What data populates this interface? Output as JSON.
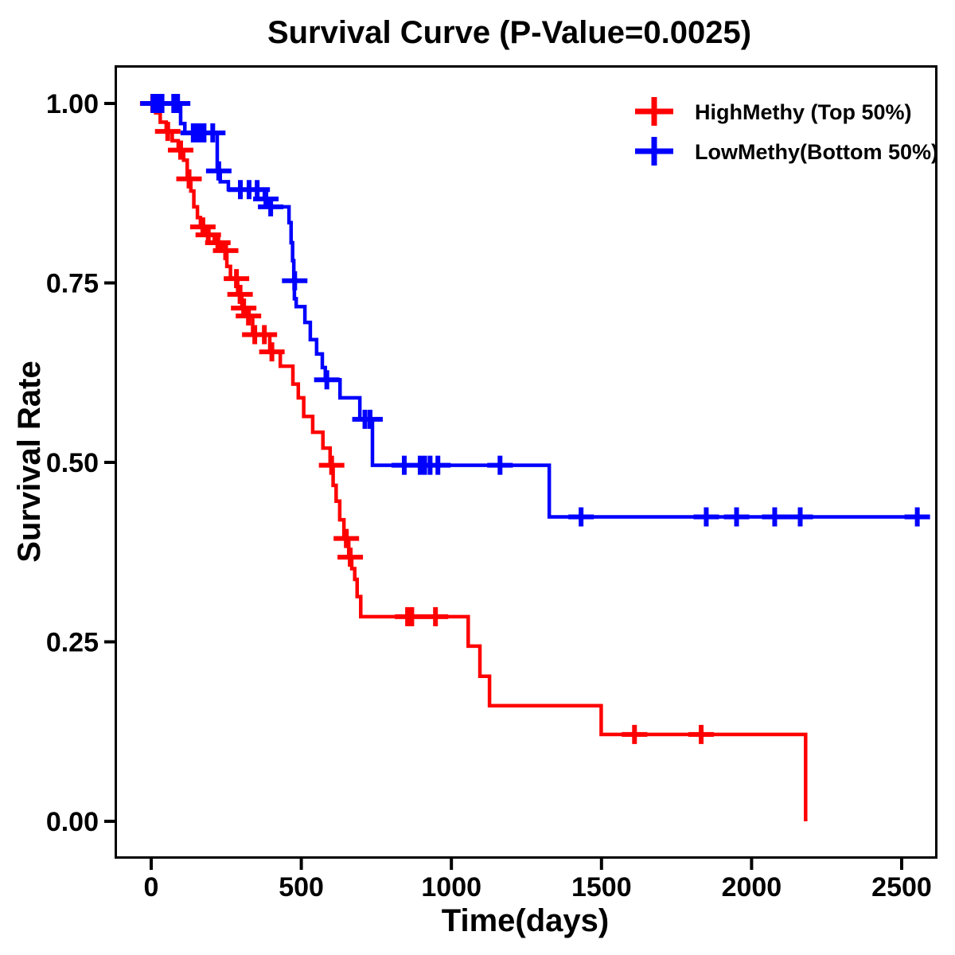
{
  "page": {
    "background": "#FFFFFF",
    "text_color": "#000000"
  },
  "chart_data": {
    "type": "line",
    "variant": "kaplan_meier_step_survival",
    "title": "Survival Curve (P-Value=0.0025)",
    "p_value": "0.0025",
    "xlabel": "Time(days)",
    "ylabel": "Survival Rate",
    "xlim": [
      0,
      2600
    ],
    "ylim": [
      0.0,
      1.0
    ],
    "grid": false,
    "legend_position": "top-right",
    "axis_color": "#000000",
    "xtick_values": [
      0,
      500,
      1000,
      1500,
      2000,
      2500
    ],
    "xtick_labels": [
      "0",
      "500",
      "1000",
      "1500",
      "2000",
      "2500"
    ],
    "ytick_values": [
      0,
      0.25,
      0.5,
      0.75,
      1.0
    ],
    "ytick_labels": [
      "0.00",
      "0.25",
      "0.50",
      "0.75",
      "1.00"
    ],
    "series": [
      {
        "name": "HighMethy (Top 50%)",
        "color": "#FF0000",
        "end_time": 2180,
        "steps": [
          [
            0,
            1.0
          ],
          [
            15,
            0.987
          ],
          [
            30,
            0.974
          ],
          [
            50,
            0.961
          ],
          [
            70,
            0.948
          ],
          [
            90,
            0.935
          ],
          [
            108,
            0.921
          ],
          [
            120,
            0.895
          ],
          [
            132,
            0.878
          ],
          [
            142,
            0.856
          ],
          [
            154,
            0.841
          ],
          [
            164,
            0.828
          ],
          [
            180,
            0.817
          ],
          [
            210,
            0.806
          ],
          [
            235,
            0.795
          ],
          [
            252,
            0.773
          ],
          [
            264,
            0.756
          ],
          [
            288,
            0.734
          ],
          [
            302,
            0.715
          ],
          [
            316,
            0.704
          ],
          [
            338,
            0.678
          ],
          [
            395,
            0.654
          ],
          [
            430,
            0.634
          ],
          [
            472,
            0.609
          ],
          [
            490,
            0.59
          ],
          [
            508,
            0.564
          ],
          [
            538,
            0.542
          ],
          [
            572,
            0.52
          ],
          [
            596,
            0.496
          ],
          [
            606,
            0.468
          ],
          [
            616,
            0.446
          ],
          [
            628,
            0.42
          ],
          [
            642,
            0.394
          ],
          [
            658,
            0.368
          ],
          [
            668,
            0.352
          ],
          [
            678,
            0.337
          ],
          [
            686,
            0.313
          ],
          [
            698,
            0.285
          ],
          [
            1056,
            0.244
          ],
          [
            1095,
            0.202
          ],
          [
            1127,
            0.161
          ],
          [
            1499,
            0.121
          ],
          [
            2180,
            0.0
          ]
        ],
        "censors": [
          [
            5,
            1.0
          ],
          [
            55,
            0.961
          ],
          [
            98,
            0.935
          ],
          [
            126,
            0.895
          ],
          [
            172,
            0.828
          ],
          [
            190,
            0.817
          ],
          [
            222,
            0.806
          ],
          [
            248,
            0.795
          ],
          [
            284,
            0.756
          ],
          [
            296,
            0.734
          ],
          [
            308,
            0.715
          ],
          [
            324,
            0.704
          ],
          [
            345,
            0.678
          ],
          [
            377,
            0.678
          ],
          [
            402,
            0.654
          ],
          [
            601,
            0.496
          ],
          [
            650,
            0.394
          ],
          [
            663,
            0.368
          ],
          [
            854,
            0.285
          ],
          [
            868,
            0.285
          ],
          [
            947,
            0.285
          ],
          [
            1610,
            0.121
          ],
          [
            1832,
            0.121
          ]
        ]
      },
      {
        "name": "LowMethy(Bottom 50%)",
        "color": "#0000FF",
        "end_time": 2581,
        "steps": [
          [
            0,
            1.0
          ],
          [
            98,
            0.972
          ],
          [
            112,
            0.959
          ],
          [
            220,
            0.906
          ],
          [
            230,
            0.891
          ],
          [
            257,
            0.88
          ],
          [
            377,
            0.867
          ],
          [
            390,
            0.856
          ],
          [
            459,
            0.834
          ],
          [
            466,
            0.806
          ],
          [
            471,
            0.781
          ],
          [
            475,
            0.753
          ],
          [
            477,
            0.728
          ],
          [
            483,
            0.717
          ],
          [
            512,
            0.695
          ],
          [
            530,
            0.671
          ],
          [
            551,
            0.651
          ],
          [
            570,
            0.632
          ],
          [
            580,
            0.615
          ],
          [
            629,
            0.59
          ],
          [
            695,
            0.56
          ],
          [
            737,
            0.496
          ],
          [
            1326,
            0.424
          ]
        ],
        "censors": [
          [
            6,
            1.0
          ],
          [
            16,
            1.0
          ],
          [
            26,
            1.0
          ],
          [
            36,
            1.0
          ],
          [
            75,
            1.0
          ],
          [
            88,
            1.0
          ],
          [
            140,
            0.959
          ],
          [
            152,
            0.959
          ],
          [
            164,
            0.959
          ],
          [
            176,
            0.959
          ],
          [
            205,
            0.959
          ],
          [
            225,
            0.906
          ],
          [
            297,
            0.88
          ],
          [
            326,
            0.88
          ],
          [
            353,
            0.88
          ],
          [
            382,
            0.867
          ],
          [
            398,
            0.856
          ],
          [
            478,
            0.753
          ],
          [
            585,
            0.615
          ],
          [
            712,
            0.56
          ],
          [
            729,
            0.56
          ],
          [
            843,
            0.496
          ],
          [
            896,
            0.496
          ],
          [
            911,
            0.496
          ],
          [
            929,
            0.496
          ],
          [
            955,
            0.496
          ],
          [
            1162,
            0.496
          ],
          [
            1432,
            0.424
          ],
          [
            1849,
            0.424
          ],
          [
            1950,
            0.424
          ],
          [
            2077,
            0.424
          ],
          [
            2162,
            0.424
          ],
          [
            2552,
            0.424
          ]
        ]
      }
    ]
  }
}
